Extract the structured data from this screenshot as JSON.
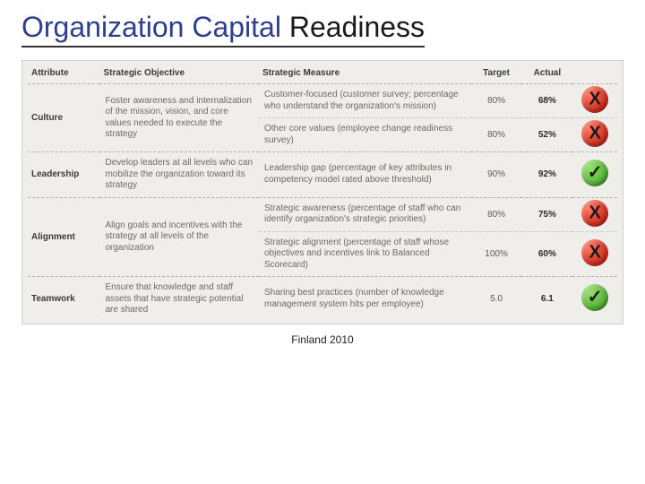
{
  "title_part1": "Organization Capital ",
  "title_part2": "Readiness",
  "footer": "Finland 2010",
  "headers": {
    "attribute": "Attribute",
    "objective": "Strategic Objective",
    "measure": "Strategic Measure",
    "target": "Target",
    "actual": "Actual"
  },
  "status_colors": {
    "fail_bg": "#d43121",
    "pass_bg": "#57b53a"
  },
  "rows": [
    {
      "attribute": "Culture",
      "objective": "Foster awareness and internalization of the mission, vision, and core values needed to execute the strategy",
      "measures": [
        {
          "text": "Customer-focused (customer survey; percentage who understand the organization's mission)",
          "target": "80%",
          "actual": "68%",
          "status": "fail",
          "glyph": "X"
        },
        {
          "text": "Other core values (employee change readiness survey)",
          "target": "80%",
          "actual": "52%",
          "status": "fail",
          "glyph": "X"
        }
      ]
    },
    {
      "attribute": "Leadership",
      "objective": "Develop leaders at all levels who can mobilize the organization toward its strategy",
      "measures": [
        {
          "text": "Leadership gap (percentage of key attributes in competency model rated above threshold)",
          "target": "90%",
          "actual": "92%",
          "status": "pass",
          "glyph": "✓"
        }
      ]
    },
    {
      "attribute": "Alignment",
      "objective": "Align goals and incentives with the strategy at all levels of the organization",
      "measures": [
        {
          "text": "Strategic awareness (percentage of staff who can identify organization's strategic priorities)",
          "target": "80%",
          "actual": "75%",
          "status": "fail",
          "glyph": "X"
        },
        {
          "text": "Strategic alignment (percentage of staff whose objectives and incentives link to Balanced Scorecard)",
          "target": "100%",
          "actual": "60%",
          "status": "fail",
          "glyph": "X"
        }
      ]
    },
    {
      "attribute": "Teamwork",
      "objective": "Ensure that knowledge and staff assets that have strategic potential are shared",
      "measures": [
        {
          "text": "Sharing best practices (number of knowledge management system hits per employee)",
          "target": "5.0",
          "actual": "6.1",
          "status": "pass",
          "glyph": "✓"
        }
      ]
    }
  ]
}
